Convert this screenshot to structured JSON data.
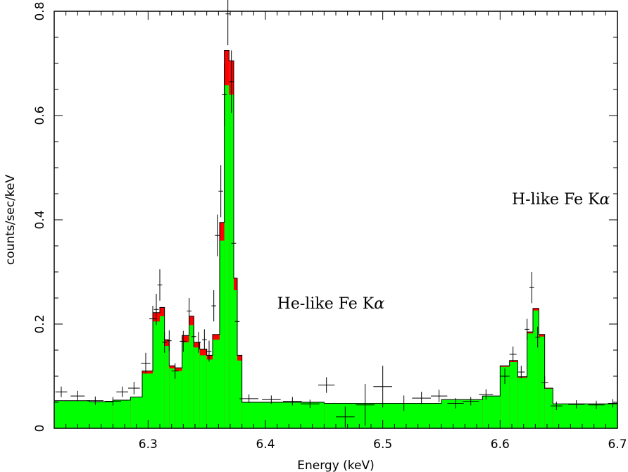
{
  "chart_data": {
    "type": "area",
    "xlabel": "Energy (keV)",
    "ylabel": "counts/sec/keV",
    "xlim": [
      6.22,
      6.7
    ],
    "ylim": [
      0,
      0.8
    ],
    "x_ticks": [
      6.3,
      6.4,
      6.5,
      6.6,
      6.7
    ],
    "x_tick_labels": [
      "6.3",
      "6.4",
      "6.5",
      "6.6",
      "6.7"
    ],
    "y_ticks": [
      0,
      0.2,
      0.4,
      0.6,
      0.8
    ],
    "y_tick_labels": [
      "0",
      "0.2",
      "0.4",
      "0.6",
      "0.8"
    ],
    "colors": {
      "model_total": "#ff0000",
      "model_component": "#00ff00",
      "data": "#000000"
    },
    "annotations": [
      {
        "text": "He-like Fe K",
        "greek": "α",
        "x": 6.41,
        "y": 0.23
      },
      {
        "text": "H-like Fe K",
        "greek": "α",
        "x": 6.61,
        "y": 0.43
      }
    ],
    "model_bins": [
      [
        6.22,
        6.25,
        0.053,
        0.053
      ],
      [
        6.25,
        6.27,
        0.051,
        0.051
      ],
      [
        6.27,
        6.285,
        0.054,
        0.054
      ],
      [
        6.285,
        6.295,
        0.06,
        0.06
      ],
      [
        6.295,
        6.304,
        0.11,
        0.105
      ],
      [
        6.304,
        6.31,
        0.222,
        0.205
      ],
      [
        6.31,
        6.314,
        0.232,
        0.215
      ],
      [
        6.314,
        6.318,
        0.17,
        0.158
      ],
      [
        6.318,
        6.323,
        0.12,
        0.115
      ],
      [
        6.323,
        6.329,
        0.116,
        0.11
      ],
      [
        6.329,
        6.335,
        0.178,
        0.165
      ],
      [
        6.335,
        6.339,
        0.215,
        0.198
      ],
      [
        6.339,
        6.344,
        0.165,
        0.155
      ],
      [
        6.344,
        6.35,
        0.152,
        0.14
      ],
      [
        6.35,
        6.355,
        0.14,
        0.132
      ],
      [
        6.355,
        6.361,
        0.18,
        0.17
      ],
      [
        6.361,
        6.365,
        0.395,
        0.36
      ],
      [
        6.365,
        6.369,
        0.725,
        0.658
      ],
      [
        6.369,
        6.373,
        0.705,
        0.64
      ],
      [
        6.373,
        6.376,
        0.288,
        0.265
      ],
      [
        6.376,
        6.38,
        0.14,
        0.13
      ],
      [
        6.38,
        6.45,
        0.05,
        0.05
      ],
      [
        6.45,
        6.55,
        0.048,
        0.048
      ],
      [
        6.55,
        6.585,
        0.055,
        0.055
      ],
      [
        6.585,
        6.6,
        0.062,
        0.062
      ],
      [
        6.6,
        6.608,
        0.12,
        0.118
      ],
      [
        6.608,
        6.615,
        0.13,
        0.127
      ],
      [
        6.615,
        6.623,
        0.099,
        0.097
      ],
      [
        6.623,
        6.628,
        0.185,
        0.182
      ],
      [
        6.628,
        6.633,
        0.23,
        0.226
      ],
      [
        6.633,
        6.638,
        0.18,
        0.176
      ],
      [
        6.638,
        6.645,
        0.077,
        0.076
      ],
      [
        6.645,
        6.7,
        0.047,
        0.047
      ]
    ],
    "data_points": [
      [
        6.226,
        0.07,
        0.005,
        0.01
      ],
      [
        6.24,
        0.062,
        0.006,
        0.01
      ],
      [
        6.255,
        0.053,
        0.007,
        0.008
      ],
      [
        6.27,
        0.052,
        0.007,
        0.008
      ],
      [
        6.278,
        0.07,
        0.005,
        0.01
      ],
      [
        6.288,
        0.077,
        0.005,
        0.012
      ],
      [
        6.298,
        0.125,
        0.004,
        0.02
      ],
      [
        6.304,
        0.21,
        0.003,
        0.025
      ],
      [
        6.307,
        0.228,
        0.002,
        0.03
      ],
      [
        6.31,
        0.275,
        0.002,
        0.03
      ],
      [
        6.314,
        0.165,
        0.002,
        0.02
      ],
      [
        6.318,
        0.168,
        0.002,
        0.02
      ],
      [
        6.323,
        0.11,
        0.003,
        0.015
      ],
      [
        6.33,
        0.167,
        0.003,
        0.02
      ],
      [
        6.335,
        0.225,
        0.002,
        0.025
      ],
      [
        6.339,
        0.176,
        0.002,
        0.02
      ],
      [
        6.343,
        0.165,
        0.002,
        0.02
      ],
      [
        6.348,
        0.17,
        0.002,
        0.02
      ],
      [
        6.352,
        0.148,
        0.002,
        0.02
      ],
      [
        6.356,
        0.235,
        0.002,
        0.03
      ],
      [
        6.359,
        0.37,
        0.002,
        0.04
      ],
      [
        6.362,
        0.455,
        0.002,
        0.05
      ],
      [
        6.365,
        0.64,
        0.002,
        0.06
      ],
      [
        6.368,
        0.795,
        0.002,
        0.06
      ],
      [
        6.371,
        0.665,
        0.002,
        0.06
      ],
      [
        6.373,
        0.355,
        0.002,
        0.05
      ],
      [
        6.376,
        0.205,
        0.002,
        0.03
      ],
      [
        6.386,
        0.057,
        0.008,
        0.008
      ],
      [
        6.405,
        0.055,
        0.008,
        0.008
      ],
      [
        6.423,
        0.052,
        0.008,
        0.008
      ],
      [
        6.438,
        0.047,
        0.008,
        0.008
      ],
      [
        6.452,
        0.083,
        0.007,
        0.015
      ],
      [
        6.468,
        0.022,
        0.008,
        0.02
      ],
      [
        6.485,
        0.045,
        0.008,
        0.04
      ],
      [
        6.5,
        0.08,
        0.008,
        0.04
      ],
      [
        6.518,
        0.048,
        0.008,
        0.015
      ],
      [
        6.533,
        0.058,
        0.008,
        0.012
      ],
      [
        6.548,
        0.062,
        0.007,
        0.012
      ],
      [
        6.562,
        0.048,
        0.007,
        0.01
      ],
      [
        6.575,
        0.052,
        0.007,
        0.008
      ],
      [
        6.588,
        0.065,
        0.006,
        0.01
      ],
      [
        6.604,
        0.1,
        0.004,
        0.015
      ],
      [
        6.611,
        0.142,
        0.003,
        0.015
      ],
      [
        6.618,
        0.108,
        0.003,
        0.012
      ],
      [
        6.623,
        0.19,
        0.002,
        0.02
      ],
      [
        6.627,
        0.27,
        0.002,
        0.03
      ],
      [
        6.632,
        0.175,
        0.002,
        0.02
      ],
      [
        6.638,
        0.088,
        0.003,
        0.012
      ],
      [
        6.648,
        0.043,
        0.005,
        0.008
      ],
      [
        6.665,
        0.046,
        0.007,
        0.008
      ],
      [
        6.682,
        0.045,
        0.007,
        0.008
      ],
      [
        6.696,
        0.048,
        0.004,
        0.008
      ]
    ]
  }
}
